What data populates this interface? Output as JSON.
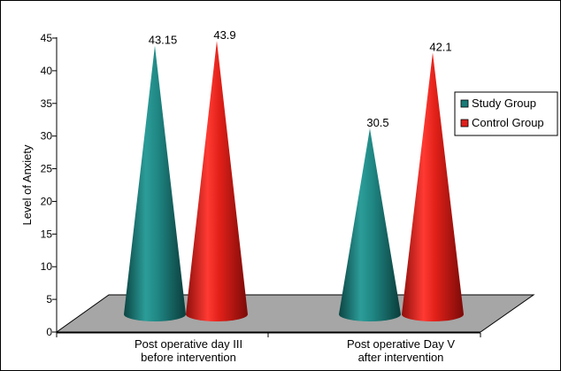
{
  "chart_data": {
    "type": "bar",
    "ylabel": "Level of Anxiety",
    "xlabel": "",
    "ylim": [
      0,
      45
    ],
    "yticks": [
      0,
      5,
      10,
      15,
      20,
      25,
      30,
      35,
      40,
      45
    ],
    "categories": [
      [
        "Post operative day III",
        "before intervention"
      ],
      [
        "Post operative Day V",
        "after intervention"
      ]
    ],
    "series": [
      {
        "name": "Study Group",
        "values": [
          43.15,
          30.5
        ],
        "labels": [
          "43.15",
          "30.5"
        ],
        "color": "#1a7b78"
      },
      {
        "name": "Control Group",
        "values": [
          43.9,
          42.1
        ],
        "labels": [
          "43.9",
          "42.1"
        ],
        "color": "#e0201c"
      }
    ],
    "legend_position": "right",
    "bar_shape": "cone"
  }
}
